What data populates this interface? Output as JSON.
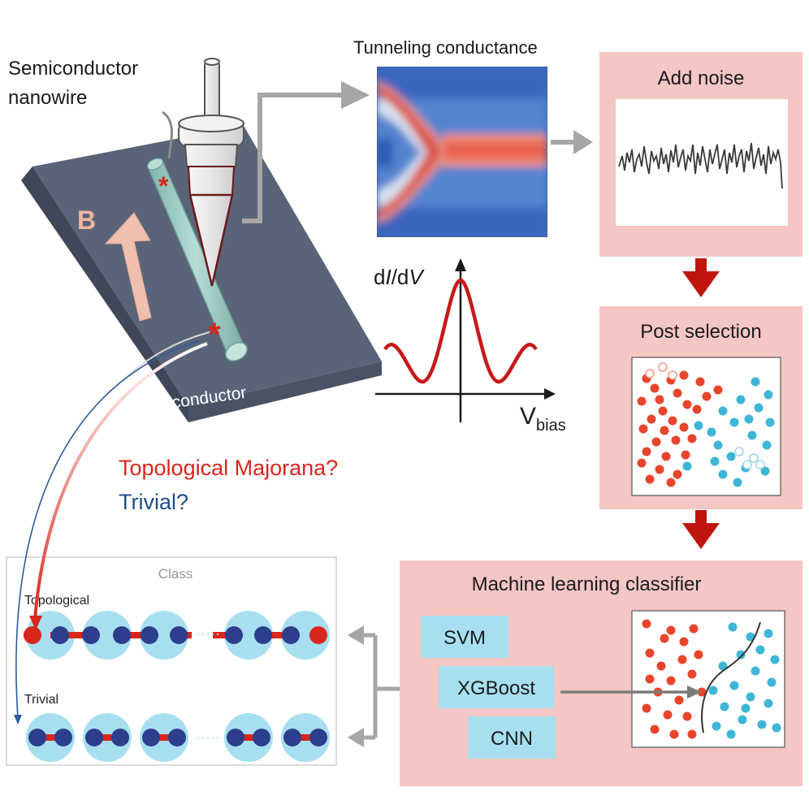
{
  "labels": {
    "nanowire": [
      "Semiconductor",
      "nanowire"
    ],
    "b_field": "B",
    "superconductor": "S-wave Superconductor",
    "tunneling_title": "Tunneling conductance",
    "didv_parts": [
      "d",
      "I",
      "/d",
      "V"
    ],
    "vbias_main": "V",
    "vbias_sub": "bias",
    "question_topological": "Topological Majorana?",
    "question_trivial": "Trivial?",
    "class_title": "Class",
    "row_topological": "Topological",
    "row_trivial": "Trivial",
    "dots": "·····"
  },
  "boxes": {
    "add_noise": "Add noise",
    "post_selection": "Post selection",
    "ml_classifier": "Machine learning classifier"
  },
  "classifiers": [
    "SVM",
    "XGBoost",
    "CNN"
  ],
  "colors": {
    "pink_box": "#f4c6c4",
    "red": "#d9261c",
    "blue_text": "#1f4e8c",
    "cyan": "#a8dff0",
    "navy_dot": "#2c3e8c",
    "dot_red": "#e8452c",
    "dot_cyan": "#3fb6d6",
    "arrow_gray": "#a6a6a6",
    "dark_red_arrow": "#c0150f"
  },
  "icons": [
    "stm-tip-icon",
    "nanowire-icon",
    "majorana-star-icon",
    "down-arrow-icon",
    "right-arrow-icon"
  ]
}
